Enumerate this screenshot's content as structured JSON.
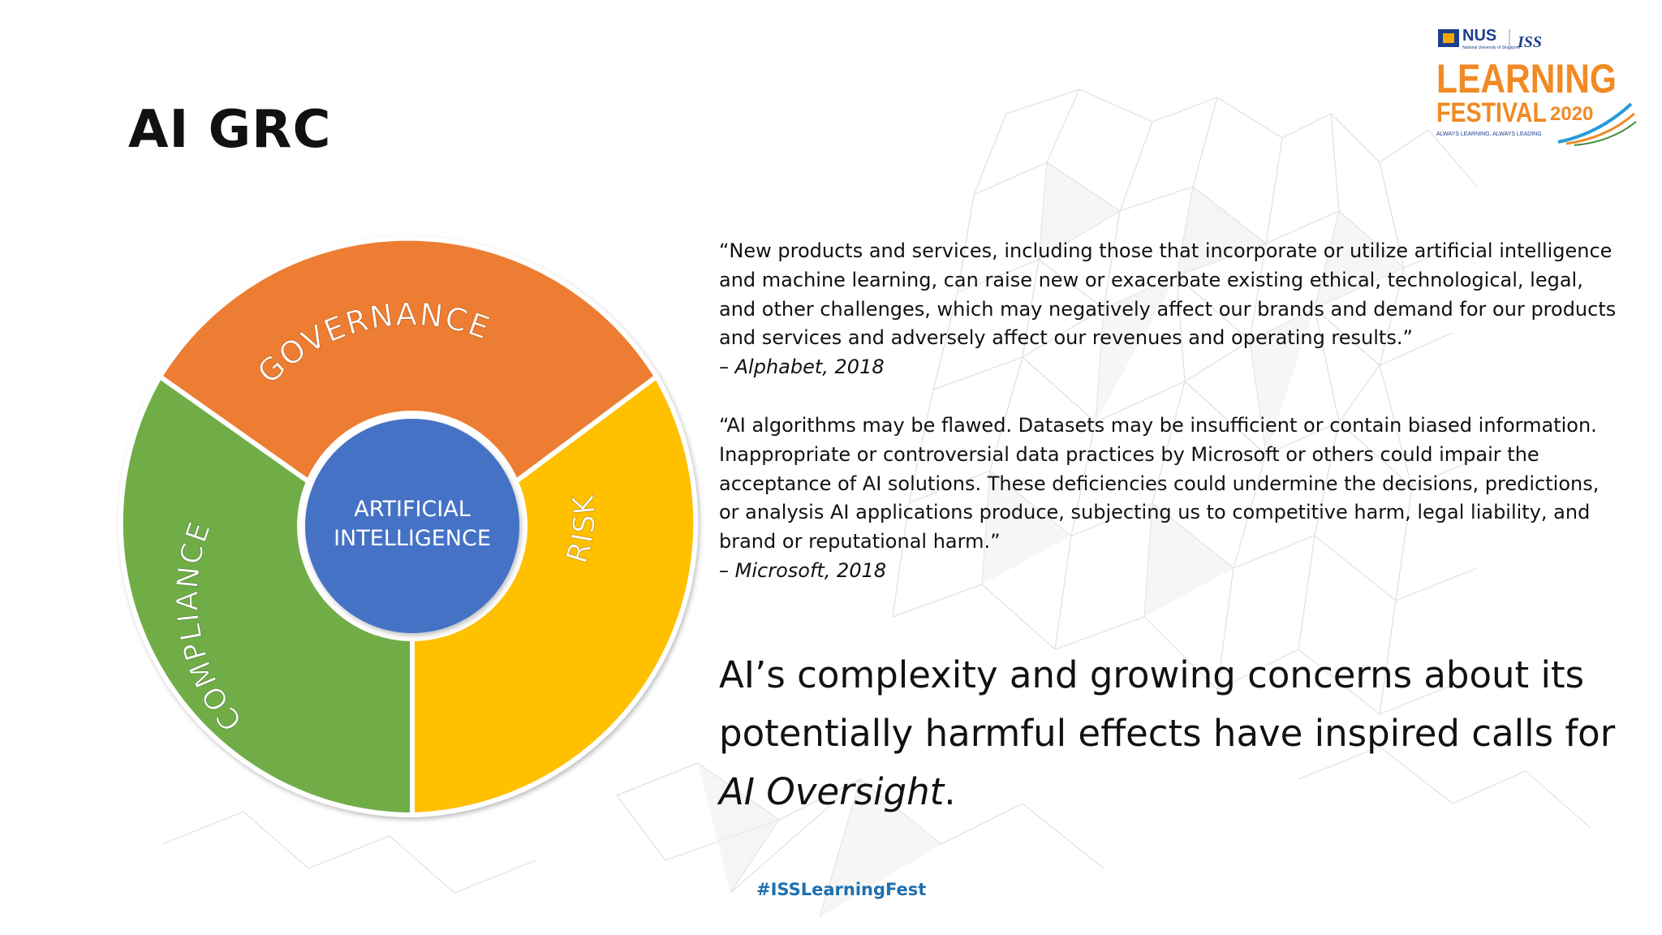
{
  "slide": {
    "title": "AI GRC",
    "hashtag": "#ISSLearningFest"
  },
  "logo": {
    "org1": "NUS",
    "org1_sub": "National University of Singapore",
    "org2": "ISS",
    "line1": "LEARNING",
    "line2": "FESTIVAL",
    "year": "2020",
    "tagline": "ALWAYS LEARNING, ALWAYS LEADING"
  },
  "diagram": {
    "center_line1": "ARTIFICIAL",
    "center_line2": "INTELLIGENCE",
    "segments": [
      {
        "label": "GOVERNANCE",
        "color": "#ed7d31"
      },
      {
        "label": "RISK",
        "color": "#ffc000"
      },
      {
        "label": "COMPLIANCE",
        "color": "#70ad47"
      }
    ],
    "center_color": "#4472c4"
  },
  "quotes": [
    {
      "text": "“New products and services, including those that incorporate or utilize artificial intelligence and machine learning, can raise new or exacerbate existing ethical, technological, legal, and other challenges, which may negatively affect our brands and demand for our products and services and adversely affect our revenues and operating results.”",
      "source": "– Alphabet, 2018"
    },
    {
      "text": "“AI algorithms may be flawed. Datasets may be insufficient or contain biased information. Inappropriate or controversial data practices by Microsoft or others could impair the acceptance of AI solutions. These deficiencies could undermine the decisions, predictions, or analysis AI applications produce, subjecting us to competitive harm, legal liability, and brand or reputational harm.”",
      "source": "– Microsoft, 2018"
    }
  ],
  "statement": {
    "text": "AI’s complexity and growing concerns about its potentially harmful effects have inspired calls for",
    "emphasis": "AI Oversight",
    "end": "."
  }
}
